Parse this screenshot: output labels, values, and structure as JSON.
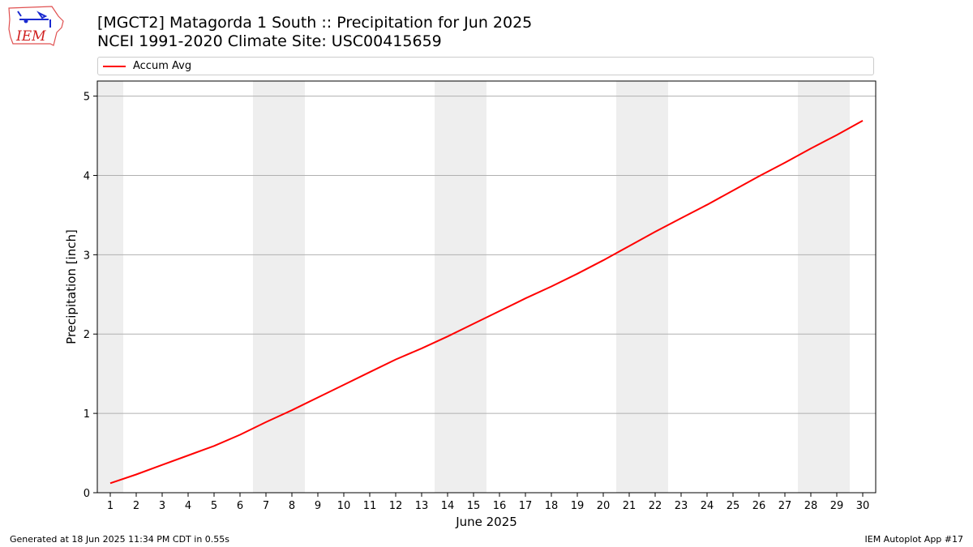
{
  "header": {
    "title_line1": "[MGCT2] Matagorda 1 South :: Precipitation for Jun 2025",
    "title_line2": "NCEI 1991-2020 Climate Site: USC00415659",
    "logo_text": "IEM"
  },
  "legend": {
    "items": [
      {
        "label": "Accum Avg",
        "color": "#ff0000"
      }
    ]
  },
  "footer": {
    "left": "Generated at 18 Jun 2025 11:34 PM CDT in 0.55s",
    "right": "IEM Autoplot App #17"
  },
  "chart_data": {
    "type": "line",
    "xlabel": "June 2025",
    "ylabel": "Precipitation [inch]",
    "x": [
      1,
      2,
      3,
      4,
      5,
      6,
      7,
      8,
      9,
      10,
      11,
      12,
      13,
      14,
      15,
      16,
      17,
      18,
      19,
      20,
      21,
      22,
      23,
      24,
      25,
      26,
      27,
      28,
      29,
      30
    ],
    "xlim": [
      0.5,
      30.5
    ],
    "ylim": [
      0,
      5.19
    ],
    "yticks": [
      0,
      1,
      2,
      3,
      4,
      5
    ],
    "grid": "y",
    "weekend_shading": [
      [
        0.5,
        1.5
      ],
      [
        6.5,
        8.5
      ],
      [
        13.5,
        15.5
      ],
      [
        20.5,
        22.5
      ],
      [
        27.5,
        29.5
      ]
    ],
    "shading_color": "#eeeeee",
    "series": [
      {
        "name": "Accum Avg",
        "color": "#ff0000",
        "values": [
          0.12,
          0.23,
          0.35,
          0.47,
          0.59,
          0.73,
          0.89,
          1.04,
          1.2,
          1.36,
          1.52,
          1.68,
          1.82,
          1.97,
          2.13,
          2.29,
          2.45,
          2.6,
          2.76,
          2.93,
          3.11,
          3.29,
          3.46,
          3.63,
          3.81,
          3.99,
          4.16,
          4.34,
          4.51,
          4.69
        ]
      }
    ]
  }
}
